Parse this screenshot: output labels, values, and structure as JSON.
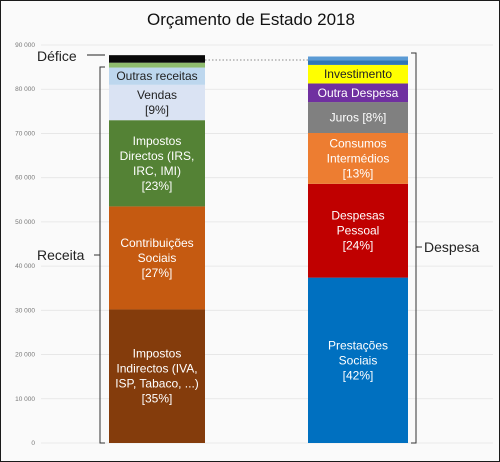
{
  "chart_data": {
    "type": "bar",
    "title": "Orçamento de Estado 2018",
    "ylim": [
      0,
      90000
    ],
    "yticks": [
      0,
      10000,
      20000,
      30000,
      40000,
      50000,
      60000,
      70000,
      80000,
      90000
    ],
    "ytick_labels": [
      "0",
      "10 000",
      "20 000",
      "30 000",
      "40 000",
      "50 000",
      "60 000",
      "70 000",
      "80 000",
      "90 000"
    ],
    "grid": true,
    "categories": [
      "Receita",
      "Despesa"
    ],
    "stacks": [
      {
        "name": "Receita",
        "segments": [
          {
            "lines": [
              "Impostos",
              "Indirectos (IVA,",
              "ISP, Tabaco, ...)",
              "[35%]"
            ],
            "value": 30200,
            "color": "#843c0c"
          },
          {
            "lines": [
              "Contribuições",
              "Sociais",
              "[27%]"
            ],
            "value": 23300,
            "color": "#c55a11"
          },
          {
            "lines": [
              "Impostos",
              "Directos (IRS,",
              "IRC, IMI)",
              "[23%]"
            ],
            "value": 19500,
            "color": "#548235"
          },
          {
            "lines": [
              "Vendas",
              "[9%]"
            ],
            "value": 8000,
            "color": "#dae3f3",
            "dark": true
          },
          {
            "lines": [
              "Outras receitas"
            ],
            "value": 3900,
            "color": "#bdd7ee",
            "dark": true
          },
          {
            "lines": [],
            "value": 1100,
            "color": "#8fbc6e"
          },
          {
            "lines": [],
            "value": 1700,
            "color": "#0a0a0a"
          }
        ]
      },
      {
        "name": "Despesa",
        "segments": [
          {
            "lines": [
              "Prestações",
              "Sociais",
              "[42%]"
            ],
            "value": 37400,
            "color": "#0070c0"
          },
          {
            "lines": [
              "Despesas",
              "Pessoal",
              "[24%]"
            ],
            "value": 21200,
            "color": "#c00000"
          },
          {
            "lines": [
              "Consumos",
              "Intermédios",
              "[13%]"
            ],
            "value": 11500,
            "color": "#ed7d31"
          },
          {
            "lines": [
              "Juros [8%]"
            ],
            "value": 7000,
            "color": "#808080"
          },
          {
            "lines": [
              "Outra Despesa"
            ],
            "value": 4200,
            "color": "#7030a0"
          },
          {
            "lines": [
              "Investimento"
            ],
            "value": 4200,
            "color": "#ffff00",
            "dark": true
          },
          {
            "lines": [],
            "value": 1000,
            "color": "#2e75b6"
          },
          {
            "lines": [],
            "value": 900,
            "color": "#5b9bd5"
          }
        ]
      }
    ],
    "annotations": {
      "defice": "Défice",
      "receita": "Receita",
      "despesa": "Despesa"
    }
  }
}
